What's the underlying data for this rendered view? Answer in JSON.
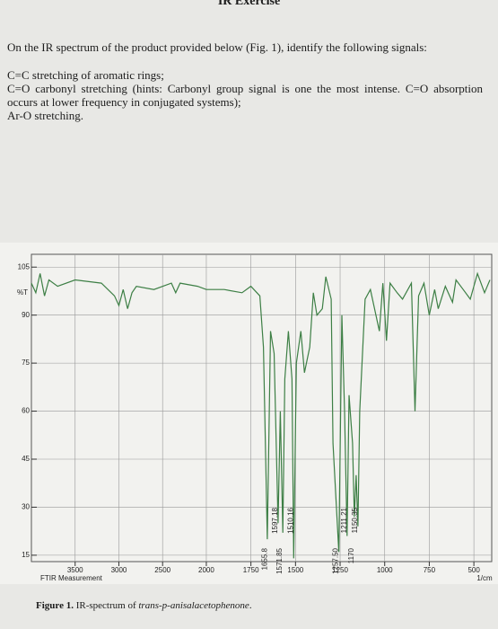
{
  "header": {
    "title": "IR Exercise"
  },
  "instructions": {
    "prompt": "On the IR spectrum of the product provided below (Fig. 1), identify the following signals:",
    "items": [
      "C=C stretching of aromatic rings;",
      "C=O carbonyl stretching (hints: Carbonyl group signal is one the most intense. C=O absorption occurs at lower frequency in conjugated systems);",
      "Ar-O stretching."
    ]
  },
  "figure": {
    "chart_data": {
      "type": "line",
      "y_label": "%T",
      "x_label": "1/cm",
      "footer": "FTIR Measurement",
      "color": "#3d7f45",
      "xlim": [
        4000,
        400
      ],
      "x_break": 2000,
      "ylim": [
        13,
        109
      ],
      "xticks": [
        3500,
        3000,
        2500,
        2000,
        1750,
        1500,
        1250,
        1000,
        750,
        500
      ],
      "yticks": [
        105,
        90,
        75,
        60,
        45,
        30,
        15
      ],
      "grid": true,
      "x": [
        4000,
        3950,
        3900,
        3850,
        3800,
        3700,
        3500,
        3200,
        3050,
        3000,
        2950,
        2900,
        2850,
        2800,
        2600,
        2400,
        2350,
        2300,
        2100,
        2000,
        1900,
        1800,
        1750,
        1700,
        1680,
        1658,
        1640,
        1620,
        1598,
        1585,
        1571,
        1560,
        1540,
        1520,
        1510,
        1495,
        1470,
        1450,
        1420,
        1400,
        1380,
        1350,
        1330,
        1300,
        1290,
        1257,
        1240,
        1225,
        1211,
        1200,
        1180,
        1170,
        1160,
        1150,
        1140,
        1110,
        1080,
        1030,
        1010,
        990,
        970,
        930,
        900,
        850,
        830,
        810,
        780,
        750,
        720,
        700,
        660,
        620,
        600,
        560,
        520,
        480,
        440,
        410
      ],
      "values": [
        100,
        97,
        103,
        96,
        101,
        99,
        101,
        100,
        96,
        93,
        98,
        92,
        97,
        99,
        98,
        100,
        97,
        100,
        99,
        98,
        98,
        97,
        99,
        96,
        80,
        20,
        85,
        78,
        25,
        60,
        22,
        70,
        85,
        70,
        14,
        75,
        85,
        72,
        80,
        97,
        90,
        92,
        102,
        95,
        50,
        16,
        90,
        60,
        21,
        65,
        50,
        27,
        40,
        24,
        60,
        95,
        98,
        85,
        100,
        82,
        100,
        97,
        95,
        100,
        60,
        96,
        100,
        90,
        98,
        92,
        99,
        94,
        101,
        98,
        95,
        103,
        97,
        101
      ],
      "annotations": [
        "1655.8",
        "1597.18",
        "1571.85",
        "1510.16",
        "1257.50",
        "1211.21",
        "1170",
        "1150.35"
      ]
    },
    "caption": {
      "label": "Figure 1.",
      "text": "IR-spectrum of",
      "italic": "trans-p-anisalacetophenone",
      "end": "."
    }
  }
}
